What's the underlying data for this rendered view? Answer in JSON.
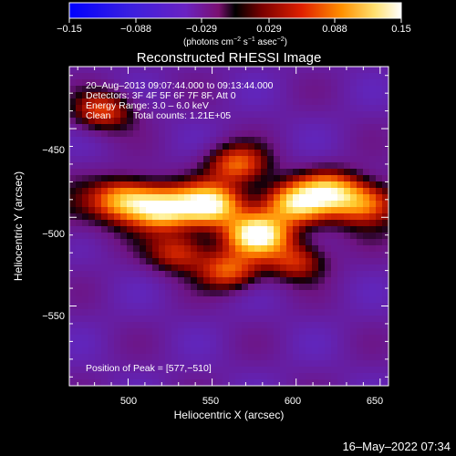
{
  "chart_data": {
    "type": "heatmap",
    "title": "Reconstructed RHESSI Image",
    "xlabel": "Heliocentric X (arcsec)",
    "ylabel": "Heliocentric Y (arcsec)",
    "xlim": [
      465,
      655
    ],
    "ylim": [
      -595,
      -415
    ],
    "x_ticks": [
      500,
      550,
      600,
      650
    ],
    "y_ticks": [
      -450,
      -500,
      -550
    ],
    "x_tick_labels": [
      "500",
      "550",
      "600",
      "650"
    ],
    "y_tick_labels": [
      "−450",
      "−500",
      "−550"
    ],
    "colorbar": {
      "range": [
        -0.15,
        0.15
      ],
      "tick_labels": [
        "−0.15",
        "−0.088",
        "−0.029",
        "0.029",
        "0.088",
        "0.15"
      ],
      "unit_prefix": "(photons cm",
      "unit_sup1": "−2",
      "unit_mid": " s",
      "unit_sup2": "−1",
      "unit_mid2": " asec",
      "unit_sup3": "−2",
      "unit_suffix": ")"
    },
    "annotations": {
      "time_range": "20–Aug–2013 09:07:44.000 to 09:13:44.000",
      "detectors": "Detectors: 3F 4F 5F 6F 7F 8F, Att 0",
      "energy": "Energy Range: 3.0 – 6.0 keV",
      "clean": "Clean",
      "counts": "Total counts: 1.21E+05",
      "peak": "Position of Peak = [577,−510]"
    },
    "peak_position": [
      577,
      -510
    ],
    "sources": [
      {
        "x": 577,
        "y": -510,
        "intensity": 0.15
      },
      {
        "x": 548,
        "y": -493,
        "intensity": 0.13
      },
      {
        "x": 520,
        "y": -495,
        "intensity": 0.11
      },
      {
        "x": 498,
        "y": -490,
        "intensity": 0.085
      },
      {
        "x": 600,
        "y": -492,
        "intensity": 0.095
      },
      {
        "x": 620,
        "y": -485,
        "intensity": 0.08
      },
      {
        "x": 640,
        "y": -492,
        "intensity": 0.06
      },
      {
        "x": 485,
        "y": -440,
        "intensity": 0.06
      },
      {
        "x": 565,
        "y": -470,
        "intensity": 0.07
      },
      {
        "x": 560,
        "y": -530,
        "intensity": 0.07
      },
      {
        "x": 600,
        "y": -525,
        "intensity": 0.05
      },
      {
        "x": 530,
        "y": -520,
        "intensity": 0.05
      }
    ],
    "background_level": -0.04,
    "footer": "16–May–2022 07:34"
  }
}
